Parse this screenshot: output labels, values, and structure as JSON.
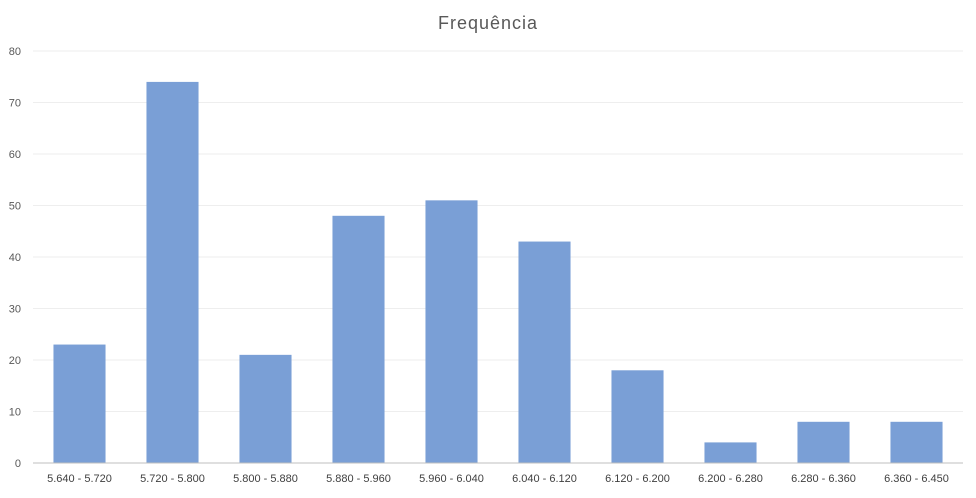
{
  "chart_data": {
    "type": "bar",
    "title": "Frequência",
    "xlabel": "",
    "ylabel": "",
    "categories": [
      "5.640 - 5.720",
      "5.720 - 5.800",
      "5.800 - 5.880",
      "5.880 - 5.960",
      "5.960 - 6.040",
      "6.040 - 6.120",
      "6.120 - 6.200",
      "6.200 - 6.280",
      "6.280 - 6.360",
      "6.360 - 6.450"
    ],
    "values": [
      23,
      74,
      21,
      48,
      51,
      43,
      18,
      4,
      8,
      8
    ],
    "ylim": [
      0,
      80
    ],
    "yticks": [
      0,
      10,
      20,
      30,
      40,
      50,
      60,
      70,
      80
    ],
    "grid": true,
    "legend": "none",
    "bar_color": "#7a9fd6"
  }
}
